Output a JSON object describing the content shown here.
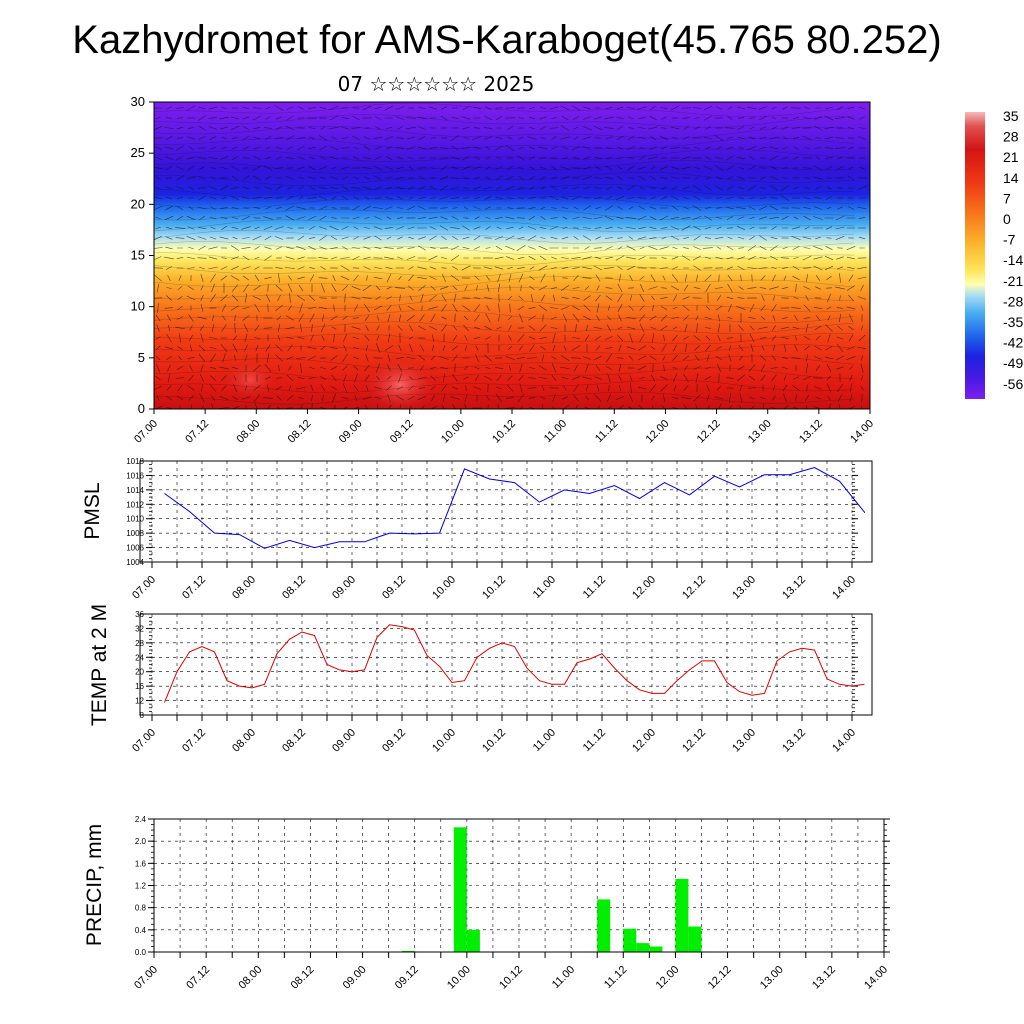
{
  "title": "Kazhydromet for AMS-Karaboget(45.765 80.252)",
  "subtitle": "07 ☆☆☆☆☆☆ 2025",
  "time_ticks": [
    "07.00",
    "07.12",
    "08.00",
    "08.12",
    "09.00",
    "09.12",
    "10.00",
    "10.12",
    "11.00",
    "11.12",
    "12.00",
    "12.12",
    "13.00",
    "13.12",
    "14.00"
  ],
  "colorbar_labels": [
    "35",
    "28",
    "21",
    "14",
    "7",
    "0",
    "-7",
    "-14",
    "-21",
    "-28",
    "-35",
    "-42",
    "-49",
    "-56"
  ],
  "chart_data": [
    {
      "type": "heatmap",
      "name": "cross-section",
      "ylim": [
        0,
        30
      ],
      "yticks": [
        0,
        5,
        10,
        15,
        20,
        25,
        30
      ],
      "xlim": [
        0,
        168
      ],
      "colorbar": {
        "min": -56,
        "max": 35,
        "step": 7
      }
    },
    {
      "type": "line",
      "ylabel": "PMSL",
      "color": "#0000dd",
      "ylim": [
        1004,
        1018
      ],
      "yticks": [
        1004,
        1006,
        1008,
        1010,
        1012,
        1014,
        1016,
        1018
      ],
      "xlim": [
        0,
        168
      ],
      "x": [
        0,
        6,
        12,
        18,
        24,
        30,
        36,
        42,
        48,
        54,
        60,
        66,
        72,
        78,
        84,
        90,
        96,
        102,
        108,
        114,
        120,
        126,
        132,
        138,
        144,
        150,
        156,
        162,
        168
      ],
      "values": [
        1013.5,
        1011.0,
        1008.0,
        1007.8,
        1005.9,
        1007.0,
        1006.0,
        1006.8,
        1006.8,
        1008.0,
        1007.9,
        1008.0,
        1016.9,
        1015.5,
        1015.0,
        1012.3,
        1014.0,
        1013.5,
        1014.6,
        1012.8,
        1015.0,
        1013.3,
        1015.9,
        1014.4,
        1016.1,
        1016.1,
        1017.1,
        1015.2,
        1010.9
      ],
      "x_extra": [
        171
      ],
      "values_extra": [
        1010.8
      ]
    },
    {
      "type": "line",
      "ylabel": "TEMP at 2 M",
      "color": "#dd0000",
      "ylim": [
        8,
        36
      ],
      "yticks": [
        8,
        12,
        16,
        20,
        24,
        28,
        32,
        36
      ],
      "xlim": [
        0,
        168
      ],
      "x": [
        0,
        3,
        6,
        9,
        12,
        15,
        18,
        21,
        24,
        27,
        30,
        33,
        36,
        39,
        42,
        45,
        48,
        51,
        54,
        57,
        60,
        63,
        66,
        69,
        72,
        75,
        78,
        81,
        84,
        87,
        90,
        93,
        96,
        99,
        102,
        105,
        108,
        111,
        114,
        117,
        120,
        123,
        126,
        129,
        132,
        135,
        138,
        141,
        144,
        147,
        150,
        153,
        156,
        159,
        162,
        165,
        168
      ],
      "values": [
        11.5,
        20.0,
        25.5,
        27.0,
        25.5,
        17.5,
        16.0,
        15.5,
        16.5,
        25.0,
        29.0,
        31.0,
        30.0,
        22.0,
        20.5,
        20.0,
        20.5,
        29.5,
        33.0,
        32.5,
        31.5,
        24.5,
        21.5,
        17.0,
        17.5,
        24.0,
        26.5,
        28.0,
        27.0,
        21.0,
        17.5,
        16.5,
        16.5,
        22.5,
        23.5,
        25.0,
        21.0,
        17.5,
        15.0,
        14.0,
        14.0,
        17.5,
        20.5,
        23.0,
        23.0,
        17.0,
        14.5,
        13.5,
        14.0,
        23.0,
        25.5,
        26.5,
        26.0,
        18.0,
        16.5,
        16.0,
        16.5
      ]
    },
    {
      "type": "bar",
      "ylabel": "PRECIP, mm",
      "color": "#00ee00",
      "ylim": [
        0,
        2.4
      ],
      "yticks": [
        "0.0",
        "0.4",
        "0.8",
        "1.2",
        "1.6",
        "2.0",
        "2.4"
      ],
      "xlim": [
        0,
        168
      ],
      "bar_width": 3,
      "x": [
        57,
        69,
        72,
        102,
        108,
        111,
        114,
        120,
        123
      ],
      "values": [
        0.02,
        2.25,
        0.4,
        0.95,
        0.42,
        0.16,
        0.1,
        1.32,
        0.46
      ]
    }
  ]
}
